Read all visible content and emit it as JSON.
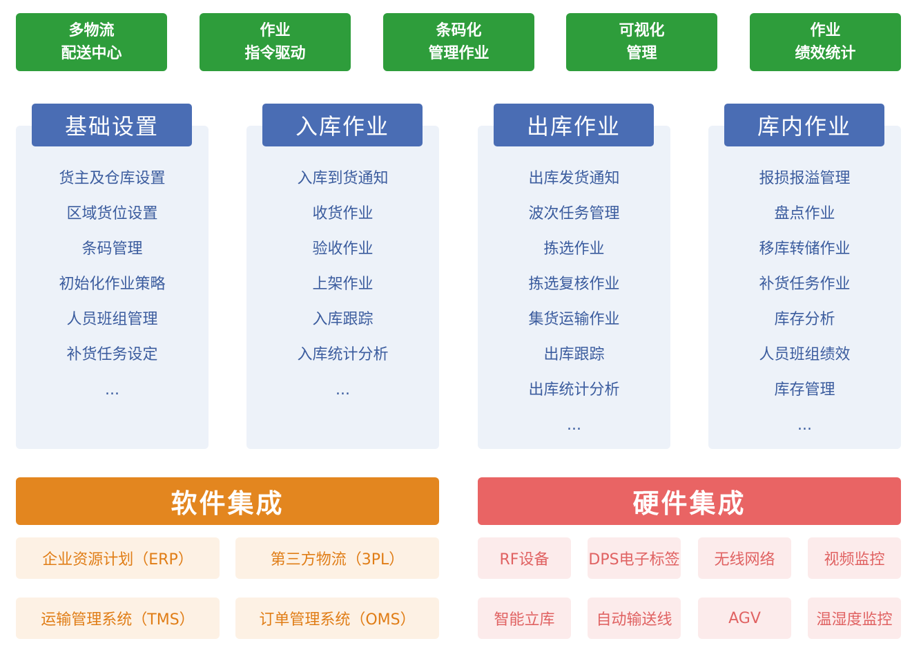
{
  "features": [
    {
      "line1": "多物流",
      "line2": "配送中心"
    },
    {
      "line1": "作业",
      "line2": "指令驱动"
    },
    {
      "line1": "条码化",
      "line2": "管理作业"
    },
    {
      "line1": "可视化",
      "line2": "管理"
    },
    {
      "line1": "作业",
      "line2": "绩效统计"
    }
  ],
  "modules": [
    {
      "title": "基础设置",
      "items": [
        "货主及仓库设置",
        "区域货位设置",
        "条码管理",
        "初始化作业策略",
        "人员班组管理",
        "补货任务设定",
        "..."
      ]
    },
    {
      "title": "入库作业",
      "items": [
        "入库到货通知",
        "收货作业",
        "验收作业",
        "上架作业",
        "入库跟踪",
        "入库统计分析",
        "..."
      ]
    },
    {
      "title": "出库作业",
      "items": [
        "出库发货通知",
        "波次任务管理",
        "拣选作业",
        "拣选复核作业",
        "集货运输作业",
        "出库跟踪",
        "出库统计分析",
        "..."
      ]
    },
    {
      "title": "库内作业",
      "items": [
        "报损报溢管理",
        "盘点作业",
        "移库转储作业",
        "补货任务作业",
        "库存分析",
        "人员班组绩效",
        "库存管理",
        "..."
      ]
    }
  ],
  "software": {
    "title": "软件集成",
    "items": [
      "企业资源计划（ERP）",
      "第三方物流（3PL）",
      "运输管理系统（TMS）",
      "订单管理系统（OMS）"
    ]
  },
  "hardware": {
    "title": "硬件集成",
    "items": [
      "RF设备",
      "DPS电子标签",
      "无线网络",
      "视频监控",
      "智能立库",
      "自动输送线",
      "AGV",
      "温湿度监控"
    ]
  },
  "colors": {
    "green": "#2e9d3b",
    "blue": "#4a6db4",
    "orange": "#e3861f",
    "red": "#e96464"
  }
}
